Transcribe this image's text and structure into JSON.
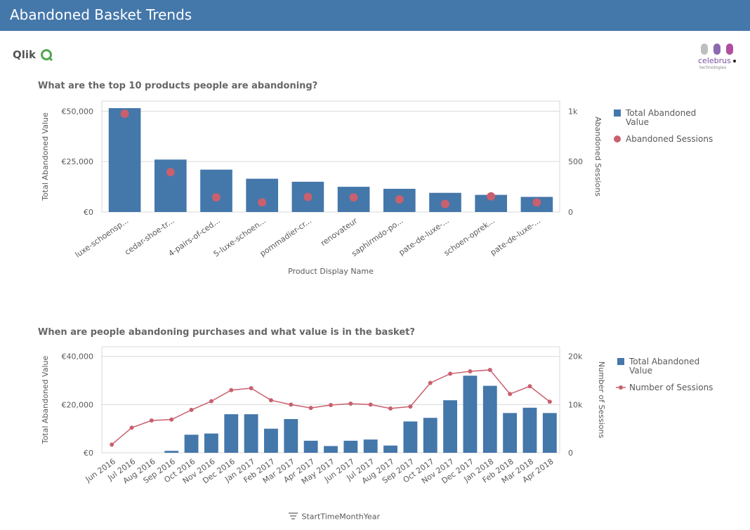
{
  "header": {
    "title": "Abandoned Basket Trends"
  },
  "logos": {
    "qlik": "Qlik",
    "celebrus": "celebrus",
    "celebrus_sub": "technologies"
  },
  "colors": {
    "bar": "#4477aa",
    "dot": "#c9606e",
    "header": "#4477aa"
  },
  "dimension_tag": {
    "icon": "sort-icon",
    "label": "StartTimeMonthYear"
  },
  "chart_data": [
    {
      "type": "bar",
      "title": "What are the top 10 products people are abandoning?",
      "xlabel": "Product Display Name",
      "ylabel": "Total Abandoned Value",
      "y2label": "Abandoned Sessions",
      "categories": [
        "luxe-schoensp...",
        "cedar-shoe-tr...",
        "4-pairs-of-ced...",
        "5-luxe-schoen...",
        "pommadier-cr...",
        "renovateur",
        "saphirmdo-po...",
        "pate-de-luxe-...",
        "schoen-oprek...",
        "pate-de-luxe-..."
      ],
      "series": [
        {
          "name": "Total Abandoned Value",
          "kind": "bar",
          "axis": "left",
          "values": [
            51500,
            26000,
            21000,
            16500,
            15000,
            12500,
            11500,
            9500,
            8500,
            7500
          ]
        },
        {
          "name": "Abandoned Sessions",
          "kind": "dot",
          "axis": "right",
          "values": [
            975,
            395,
            145,
            95,
            150,
            145,
            125,
            80,
            155,
            95
          ]
        }
      ],
      "ylim": [
        0,
        55000
      ],
      "y2lim": [
        0,
        1100
      ],
      "yticks": [
        {
          "value": 0,
          "label": "€0"
        },
        {
          "value": 25000,
          "label": "€25,000"
        },
        {
          "value": 50000,
          "label": "€50,000"
        }
      ],
      "y2ticks": [
        {
          "value": 0,
          "label": "0"
        },
        {
          "value": 500,
          "label": "500"
        },
        {
          "value": 1000,
          "label": "1k"
        }
      ],
      "legend": [
        {
          "label_lines": [
            "Total Abandoned",
            "Value"
          ],
          "symbol": "square"
        },
        {
          "label_lines": [
            "Abandoned Sessions"
          ],
          "symbol": "circle"
        }
      ],
      "legend_position": "right"
    },
    {
      "type": "bar",
      "title": "When are people abandoning purchases and what value is in the basket?",
      "xlabel": "",
      "ylabel": "Total Abandoned Value",
      "y2label": "Number of Sessions",
      "categories": [
        "Jun 2016",
        "Jul 2016",
        "Aug 2016",
        "Sep 2016",
        "Oct 2016",
        "Nov 2016",
        "Dec 2016",
        "Jan 2017",
        "Feb 2017",
        "Mar 2017",
        "Apr 2017",
        "May 2017",
        "Jun 2017",
        "Jul 2017",
        "Aug 2017",
        "Sep 2017",
        "Oct 2017",
        "Nov 2017",
        "Dec 2017",
        "Jan 2018",
        "Feb 2018",
        "Mar 2018",
        "Apr 2018"
      ],
      "series": [
        {
          "name": "Total Abandoned Value",
          "kind": "bar",
          "axis": "left",
          "values": [
            0,
            0,
            0,
            800,
            7500,
            8000,
            16000,
            16000,
            10000,
            14000,
            5000,
            2800,
            5000,
            5500,
            3000,
            13000,
            14500,
            21800,
            32000,
            27800,
            16500,
            18700,
            16500
          ]
        },
        {
          "name": "Number of Sessions",
          "kind": "line",
          "axis": "right",
          "values": [
            1700,
            5200,
            6700,
            6900,
            8900,
            10700,
            13000,
            13400,
            10900,
            10000,
            9300,
            9900,
            10200,
            10000,
            9200,
            9600,
            14500,
            16400,
            16900,
            17200,
            12200,
            13800,
            10600
          ]
        }
      ],
      "ylim": [
        0,
        44000
      ],
      "y2lim": [
        0,
        22000
      ],
      "yticks": [
        {
          "value": 0,
          "label": "€0"
        },
        {
          "value": 20000,
          "label": "€20,000"
        },
        {
          "value": 40000,
          "label": "€40,000"
        }
      ],
      "y2ticks": [
        {
          "value": 0,
          "label": "0"
        },
        {
          "value": 10000,
          "label": "10k"
        },
        {
          "value": 20000,
          "label": "20k"
        }
      ],
      "legend": [
        {
          "label_lines": [
            "Total Abandoned",
            "Value"
          ],
          "symbol": "square"
        },
        {
          "label_lines": [
            "Number of Sessions"
          ],
          "symbol": "line-dot"
        }
      ],
      "legend_position": "right"
    }
  ]
}
